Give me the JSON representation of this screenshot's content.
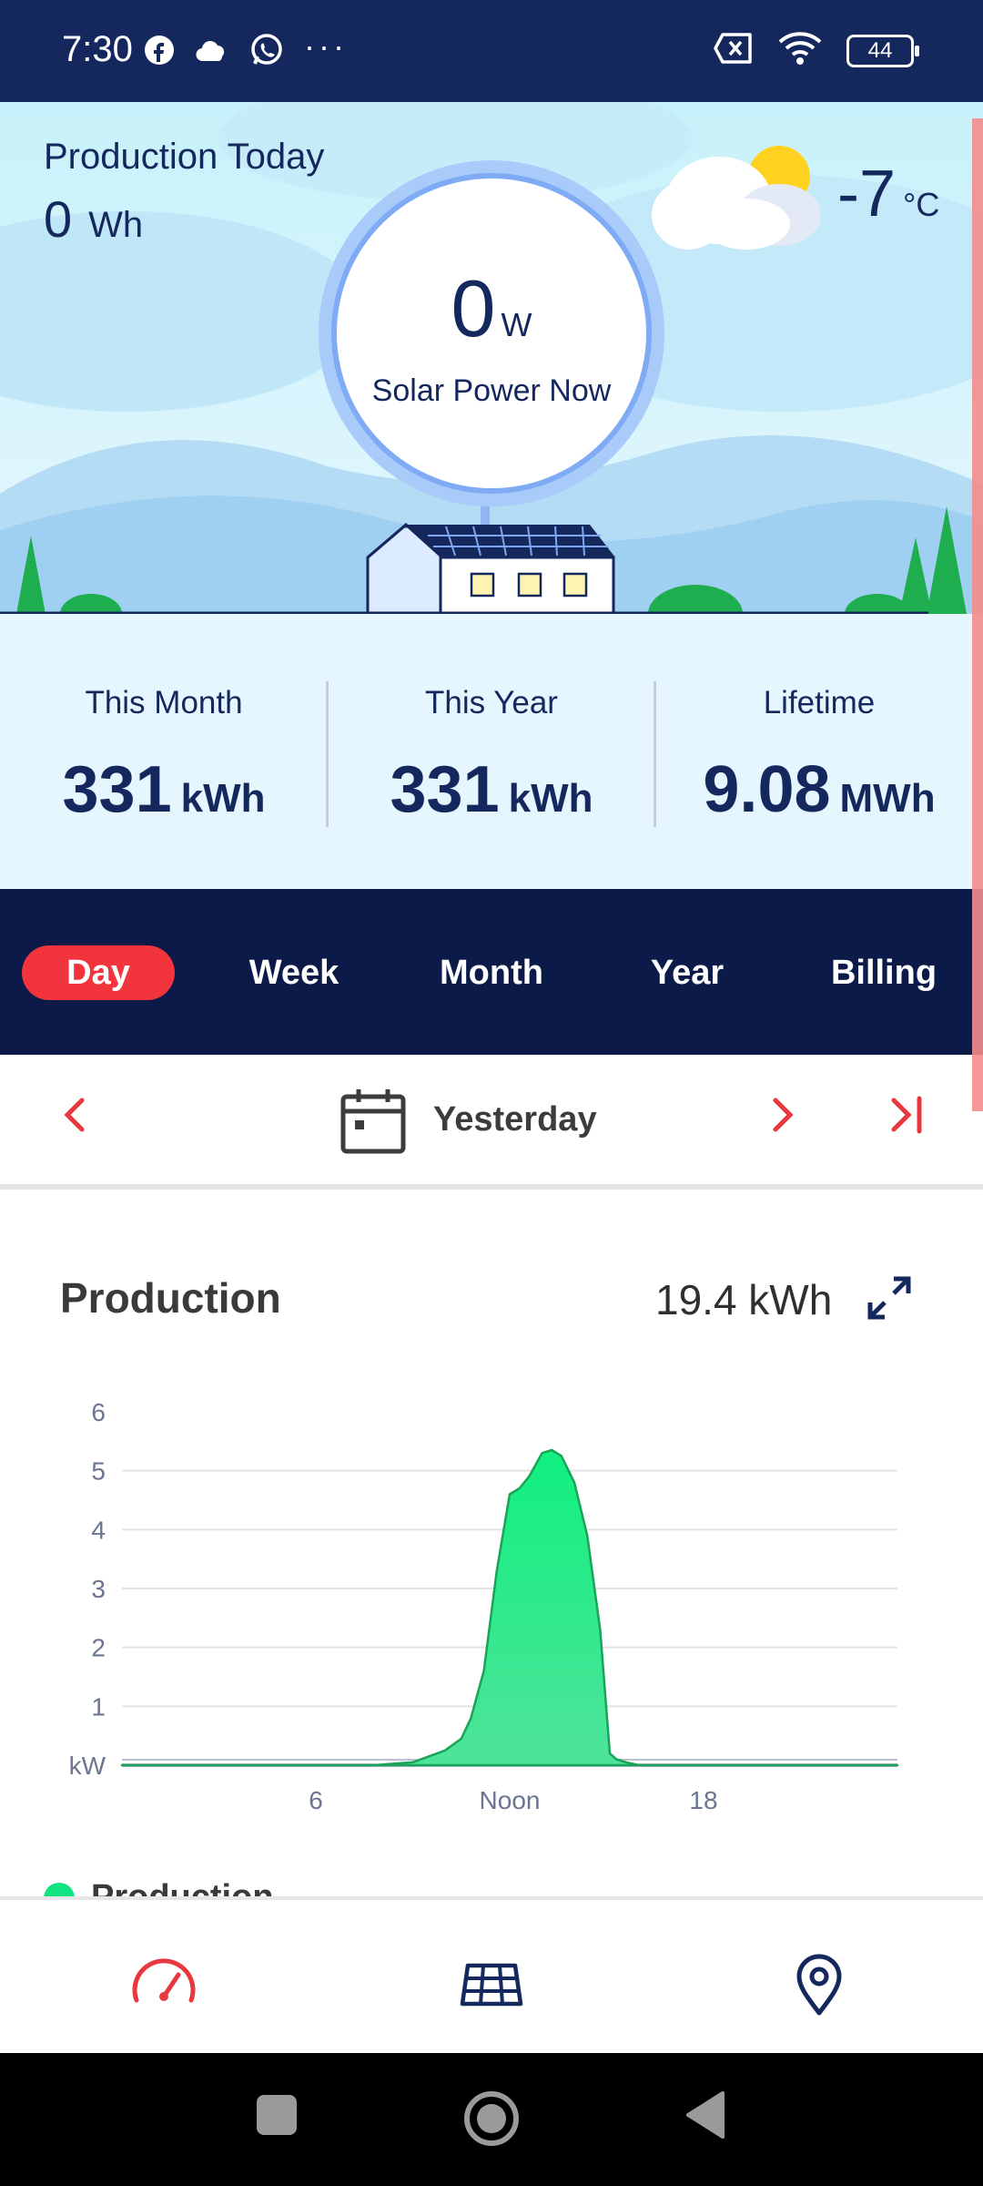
{
  "status_bar": {
    "time": "7:30",
    "battery": "44",
    "icons": [
      "facebook-icon",
      "cloud-icon",
      "whatsapp-icon",
      "more-dots-icon",
      "no-sim-icon",
      "wifi-icon",
      "battery-icon"
    ]
  },
  "hero": {
    "production_today_label": "Production Today",
    "production_today_value": "0",
    "production_today_unit": "Wh",
    "power_now_value": "0",
    "power_now_unit": "W",
    "power_now_label": "Solar Power Now",
    "temperature_value": "-7",
    "temperature_unit": "°C"
  },
  "summary": {
    "month": {
      "label": "This Month",
      "value": "331",
      "unit": "kWh"
    },
    "year": {
      "label": "This Year",
      "value": "331",
      "unit": "kWh"
    },
    "lifetime": {
      "label": "Lifetime",
      "value": "9.08",
      "unit": "MWh"
    }
  },
  "tabs": {
    "day": "Day",
    "week": "Week",
    "month": "Month",
    "year": "Year",
    "billing": "Billing",
    "active": "Day"
  },
  "date_nav": {
    "label": "Yesterday"
  },
  "production": {
    "title": "Production",
    "total": "19.4 kWh",
    "legend": "Production"
  },
  "colors": {
    "navy": "#0c1a4a",
    "accent_red": "#f2353c",
    "production_green": "#10e37f"
  },
  "chart_data": {
    "type": "area",
    "title": "Production",
    "xlabel": "",
    "ylabel": "kW",
    "x_tick_labels": [
      "6",
      "Noon",
      "18"
    ],
    "x_ticks_hours": [
      6,
      12,
      18
    ],
    "y_ticks": [
      "kW",
      "1",
      "2",
      "3",
      "4",
      "5",
      "6"
    ],
    "ylim": [
      0,
      6
    ],
    "xlim_hours": [
      0,
      24
    ],
    "series": [
      {
        "name": "Production",
        "x_hours": [
          0,
          7.8,
          9,
          9.5,
          10,
          10.5,
          10.8,
          11.2,
          11.6,
          12,
          12.3,
          12.6,
          13,
          13.3,
          13.6,
          14,
          14.4,
          14.8,
          15.1,
          15.3,
          15.6,
          16,
          24
        ],
        "values": [
          0,
          0,
          0.05,
          0.15,
          0.25,
          0.45,
          0.8,
          1.6,
          3.3,
          4.6,
          4.7,
          4.9,
          5.3,
          5.35,
          5.25,
          4.8,
          3.9,
          2.3,
          0.2,
          0.1,
          0.05,
          0,
          0
        ]
      }
    ],
    "legend_position": "bottom-left",
    "grid": true
  }
}
